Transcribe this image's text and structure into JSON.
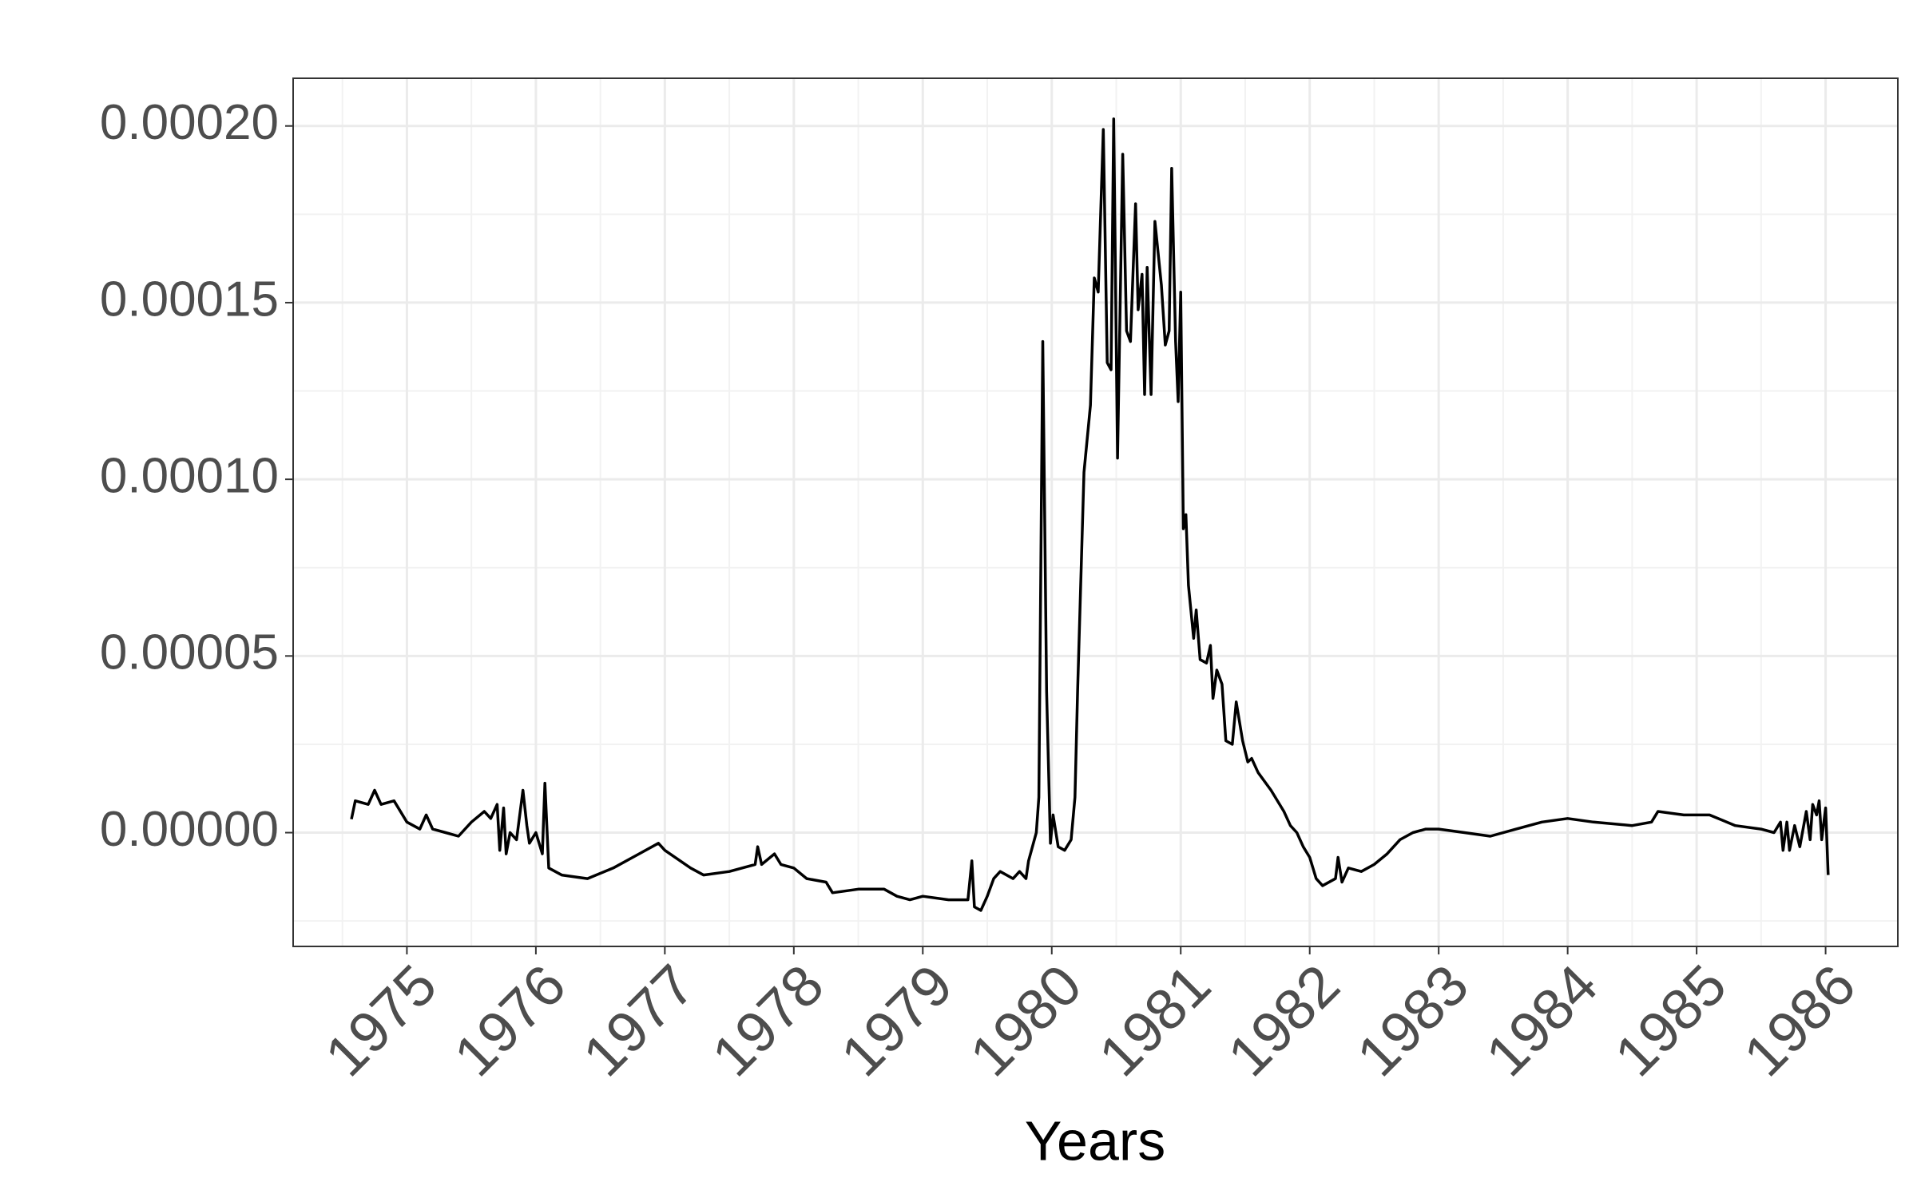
{
  "chart_data": {
    "type": "line",
    "x_label": "Years",
    "x": [
      1974.57,
      1974.6,
      1974.7,
      1974.75,
      1974.8,
      1974.9,
      1975.0,
      1975.1,
      1975.15,
      1975.2,
      1975.3,
      1975.4,
      1975.5,
      1975.6,
      1975.65,
      1975.7,
      1975.72,
      1975.75,
      1975.77,
      1975.8,
      1975.85,
      1975.9,
      1975.93,
      1975.95,
      1976.0,
      1976.05,
      1976.07,
      1976.1,
      1976.2,
      1976.4,
      1976.6,
      1976.8,
      1976.95,
      1977.0,
      1977.2,
      1977.3,
      1977.5,
      1977.6,
      1977.7,
      1977.72,
      1977.75,
      1977.85,
      1977.9,
      1978.0,
      1978.1,
      1978.25,
      1978.3,
      1978.5,
      1978.7,
      1978.8,
      1978.9,
      1979.0,
      1979.2,
      1979.35,
      1979.38,
      1979.4,
      1979.45,
      1979.5,
      1979.55,
      1979.6,
      1979.7,
      1979.75,
      1979.8,
      1979.82,
      1979.88,
      1979.9,
      1979.93,
      1979.96,
      1979.99,
      1980.01,
      1980.05,
      1980.1,
      1980.15,
      1980.18,
      1980.2,
      1980.25,
      1980.3,
      1980.33,
      1980.36,
      1980.4,
      1980.43,
      1980.46,
      1980.48,
      1980.51,
      1980.55,
      1980.58,
      1980.61,
      1980.65,
      1980.67,
      1980.7,
      1980.72,
      1980.74,
      1980.77,
      1980.8,
      1980.85,
      1980.88,
      1980.91,
      1980.93,
      1980.96,
      1980.98,
      1981.0,
      1981.02,
      1981.04,
      1981.06,
      1981.1,
      1981.12,
      1981.15,
      1981.2,
      1981.23,
      1981.25,
      1981.28,
      1981.32,
      1981.35,
      1981.4,
      1981.43,
      1981.48,
      1981.52,
      1981.55,
      1981.6,
      1981.7,
      1981.8,
      1981.85,
      1981.9,
      1981.95,
      1982.0,
      1982.05,
      1982.1,
      1982.2,
      1982.22,
      1982.25,
      1982.3,
      1982.4,
      1982.5,
      1982.6,
      1982.7,
      1982.8,
      1982.9,
      1983.0,
      1983.2,
      1983.4,
      1983.6,
      1983.8,
      1984.0,
      1984.2,
      1984.5,
      1984.65,
      1984.7,
      1984.9,
      1985.1,
      1985.3,
      1985.5,
      1985.6,
      1985.65,
      1985.67,
      1985.7,
      1985.72,
      1985.76,
      1985.8,
      1985.85,
      1985.88,
      1985.9,
      1985.93,
      1985.95,
      1985.97,
      1986.0,
      1986.02
    ],
    "series": [
      {
        "color": "#000000",
        "values": [
          3.8e-06,
          9e-06,
          8e-06,
          1.2e-05,
          8e-06,
          9e-06,
          3e-06,
          1e-06,
          5e-06,
          1e-06,
          0,
          -1e-06,
          3e-06,
          6e-06,
          4e-06,
          8e-06,
          -5e-06,
          7e-06,
          -6e-06,
          0,
          -2e-06,
          1.2e-05,
          2e-06,
          -3e-06,
          0,
          -6e-06,
          1.4e-05,
          -1e-05,
          -1.2e-05,
          -1.3e-05,
          -1e-05,
          -6e-06,
          -3e-06,
          -5e-06,
          -1e-05,
          -1.2e-05,
          -1.1e-05,
          -1e-05,
          -9e-06,
          -4e-06,
          -9e-06,
          -6e-06,
          -9e-06,
          -1e-05,
          -1.3e-05,
          -1.4e-05,
          -1.7e-05,
          -1.6e-05,
          -1.6e-05,
          -1.8e-05,
          -1.9e-05,
          -1.8e-05,
          -1.9e-05,
          -1.9e-05,
          -8e-06,
          -2.1e-05,
          -2.2e-05,
          -1.8e-05,
          -1.3e-05,
          -1.1e-05,
          -1.3e-05,
          -1.1e-05,
          -1.3e-05,
          -8e-06,
          0,
          1e-05,
          0.000139,
          4e-05,
          -3e-06,
          5e-06,
          -4e-06,
          -5e-06,
          -2e-06,
          1e-05,
          4e-05,
          0.000102,
          0.000121,
          0.000157,
          0.000153,
          0.000199,
          0.000133,
          0.000131,
          0.000202,
          0.000106,
          0.000192,
          0.000142,
          0.000139,
          0.000178,
          0.000148,
          0.000158,
          0.000124,
          0.00016,
          0.000124,
          0.000173,
          0.000155,
          0.000138,
          0.000142,
          0.000188,
          0.000139,
          0.000122,
          0.000153,
          8.6e-05,
          9e-05,
          7e-05,
          5.5e-05,
          6.3e-05,
          4.9e-05,
          4.8e-05,
          5.3e-05,
          3.8e-05,
          4.6e-05,
          4.2e-05,
          2.6e-05,
          2.5e-05,
          3.7e-05,
          2.6e-05,
          2e-05,
          2.1e-05,
          1.7e-05,
          1.2e-05,
          6e-06,
          2e-06,
          0,
          -4e-06,
          -7e-06,
          -1.3e-05,
          -1.5e-05,
          -1.3e-05,
          -7e-06,
          -1.4e-05,
          -1e-05,
          -1.1e-05,
          -9e-06,
          -6e-06,
          -2e-06,
          0,
          1e-06,
          1e-06,
          0,
          -1e-06,
          1e-06,
          3e-06,
          4e-06,
          3e-06,
          2e-06,
          3e-06,
          6e-06,
          5e-06,
          5e-06,
          2e-06,
          1e-06,
          0,
          3e-06,
          -5e-06,
          3e-06,
          -5e-06,
          2e-06,
          -4e-06,
          6e-06,
          -2e-06,
          8e-06,
          5e-06,
          9e-06,
          -2e-06,
          7e-06,
          -1.2e-05
        ]
      }
    ],
    "xlim": [
      1974.118,
      1986.56
    ],
    "xticks": [
      1975,
      1976,
      1977,
      1978,
      1979,
      1980,
      1981,
      1982,
      1983,
      1984,
      1985,
      1986
    ],
    "ylim": [
      -3.22e-05,
      0.0002135
    ],
    "yticks": [
      {
        "value": 0,
        "label": "0.00000"
      },
      {
        "value": 5e-05,
        "label": "0.00005"
      },
      {
        "value": 0.0001,
        "label": "0.00010"
      },
      {
        "value": 0.00015,
        "label": "0.00015"
      },
      {
        "value": 0.0002,
        "label": "0.00020"
      }
    ],
    "grid": true
  }
}
